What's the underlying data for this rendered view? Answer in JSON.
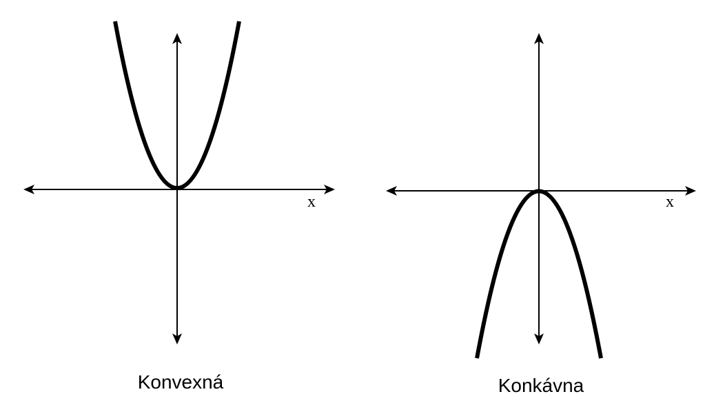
{
  "panels": [
    {
      "id": "convex",
      "axis_label": "x",
      "caption": "Konvexná",
      "curve_shape": "upward-opening parabola",
      "vertex": "origin"
    },
    {
      "id": "concave",
      "axis_label": "x",
      "caption": "Konkávna",
      "curve_shape": "downward-opening parabola",
      "vertex": "origin"
    }
  ],
  "colors": {
    "stroke": "#000000",
    "background": "#ffffff"
  }
}
